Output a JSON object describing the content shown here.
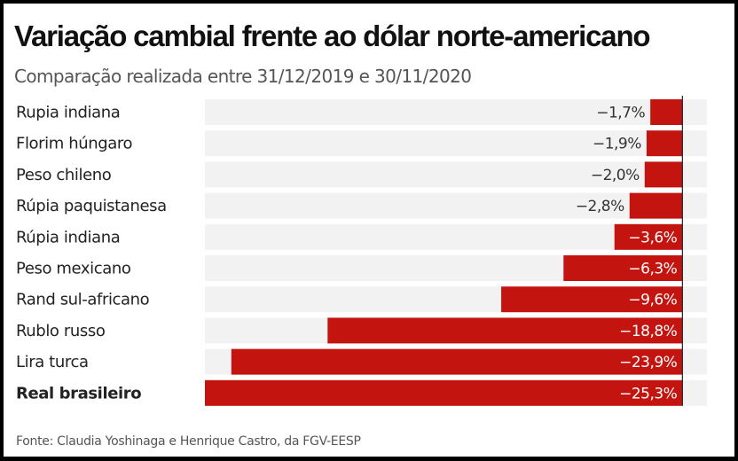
{
  "chart_data": {
    "type": "bar",
    "orientation": "horizontal",
    "title": "Variação cambial frente ao dólar norte-americano",
    "subtitle": "Comparação realizada entre 31/12/2019 e 30/11/2020",
    "categories": [
      "Rupia indiana",
      "Florim húngaro",
      "Peso chileno",
      "Rúpia paquistanesa",
      "Rúpia indiana",
      "Peso mexicano",
      "Rand sul-africano",
      "Rublo russo",
      "Lira turca",
      "Real brasileiro"
    ],
    "values": [
      -1.7,
      -1.9,
      -2.0,
      -2.8,
      -3.6,
      -6.3,
      -9.6,
      -18.8,
      -23.9,
      -25.3
    ],
    "value_labels": [
      "−1,7%",
      "−1,9%",
      "−2,0%",
      "−2,8%",
      "−3,6%",
      "−6,3%",
      "−9,6%",
      "−18,8%",
      "−23,9%",
      "−25,3%"
    ],
    "highlighted_category": "Real brasileiro",
    "unit": "%",
    "xlim": [
      -25.3,
      1.3
    ],
    "xlabel": "",
    "ylabel": "",
    "grid": false,
    "legend": "none",
    "source": "Fonte: Claudia Yoshinaga e Henrique Castro, da FGV-EESP",
    "colors": {
      "bar": "#c4140f",
      "track": "#f2f2f2",
      "zero_line": "#222222",
      "label_outside": "#333333",
      "label_inside": "#ffffff"
    }
  }
}
